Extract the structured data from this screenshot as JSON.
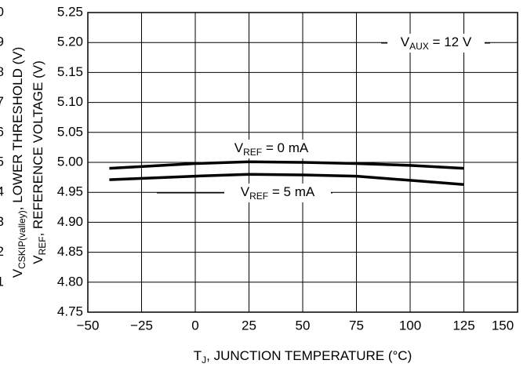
{
  "chart_data": {
    "type": "line",
    "xlabel": {
      "main": "T",
      "sub": "J",
      "rest": ", JUNCTION TEMPERATURE (°C)"
    },
    "ylabel": {
      "main": "V",
      "sub": "REF",
      "rest": ", REFERENCE VOLTAGE (V)"
    },
    "ylabel2": {
      "main": "V",
      "sub": "CSKIP(valley)",
      "rest": ", LOWER THRESHOLD (V)"
    },
    "y2_tick_fragments": [
      "0",
      "9",
      "8",
      "7",
      "6",
      "5",
      "4",
      "3",
      "2",
      "1"
    ],
    "x": [
      -40,
      0,
      25,
      50,
      75,
      100,
      125
    ],
    "series": [
      {
        "name": {
          "main": "V",
          "sub": "REF",
          "rest": " = 0 mA"
        },
        "color": "#000000",
        "values": [
          4.99,
          4.998,
          5.001,
          5.0,
          4.998,
          4.995,
          4.99
        ]
      },
      {
        "name": {
          "main": "V",
          "sub": "REF",
          "rest": " = 5 mA"
        },
        "color": "#000000",
        "values": [
          4.971,
          4.977,
          4.98,
          4.979,
          4.977,
          4.97,
          4.963
        ]
      }
    ],
    "annotation": {
      "main": "V",
      "sub": "AUX",
      "rest": " = 12 V"
    },
    "xlim": [
      -50,
      150
    ],
    "xticks": [
      {
        "value": -50,
        "label": "−50"
      },
      {
        "value": -25,
        "label": "−25"
      },
      0,
      25,
      50,
      75,
      100,
      125,
      150
    ],
    "ylim": [
      4.75,
      5.25
    ],
    "yticks": [
      4.75,
      {
        "value": 4.8,
        "label": "4.80"
      },
      4.85,
      {
        "value": 4.9,
        "label": "4.90"
      },
      4.95,
      {
        "value": 5,
        "label": "5.00"
      },
      5.05,
      {
        "value": 5.1,
        "label": "5.10"
      },
      5.15,
      {
        "value": 5.2,
        "label": "5.20"
      },
      5.25
    ],
    "grid": true
  }
}
